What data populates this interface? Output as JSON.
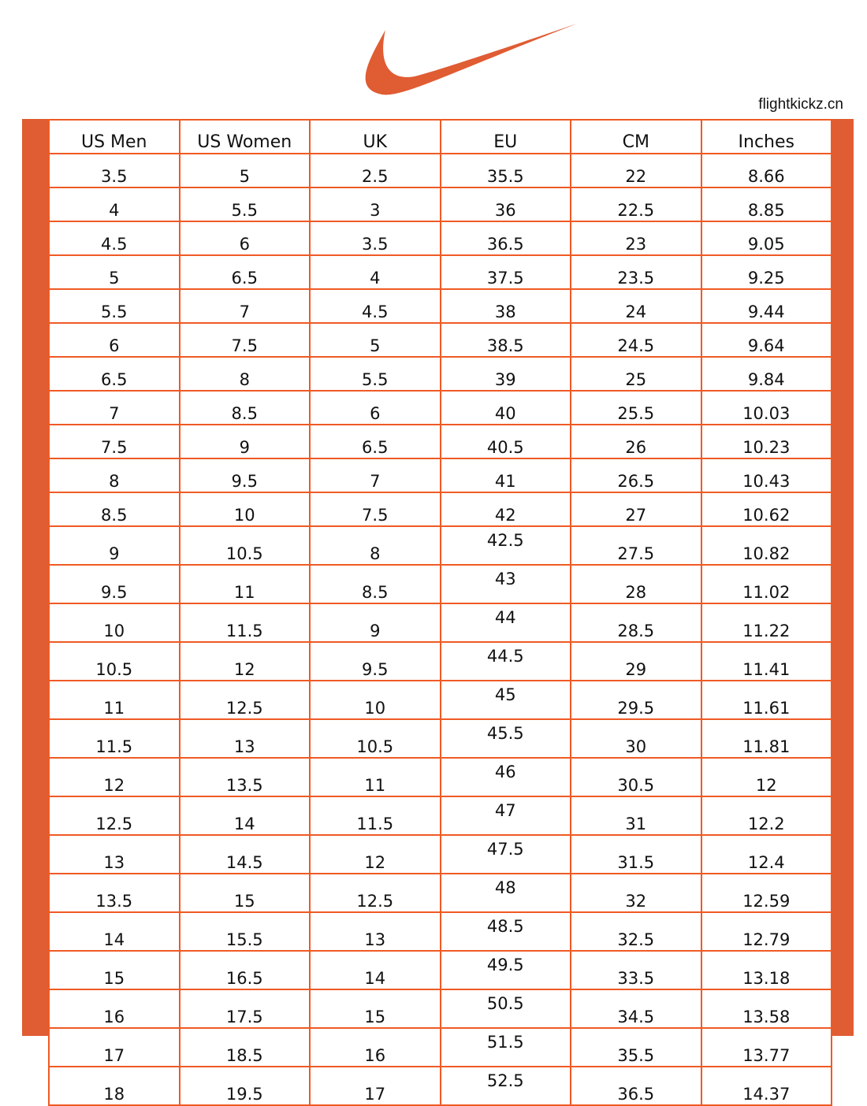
{
  "brand": {
    "logo": "Nike swoosh",
    "color": "#e05c33",
    "site": "flightkickz.cn"
  },
  "table": {
    "headers": [
      "US Men",
      "US Women",
      "UK",
      "EU",
      "CM",
      "Inches"
    ],
    "rows": [
      [
        "3.5",
        "5",
        "2.5",
        "35.5",
        "22",
        "8.66"
      ],
      [
        "4",
        "5.5",
        "3",
        "36",
        "22.5",
        "8.85"
      ],
      [
        "4.5",
        "6",
        "3.5",
        "36.5",
        "23",
        "9.05"
      ],
      [
        "5",
        "6.5",
        "4",
        "37.5",
        "23.5",
        "9.25"
      ],
      [
        "5.5",
        "7",
        "4.5",
        "38",
        "24",
        "9.44"
      ],
      [
        "6",
        "7.5",
        "5",
        "38.5",
        "24.5",
        "9.64"
      ],
      [
        "6.5",
        "8",
        "5.5",
        "39",
        "25",
        "9.84"
      ],
      [
        "7",
        "8.5",
        "6",
        "40",
        "25.5",
        "10.03"
      ],
      [
        "7.5",
        "9",
        "6.5",
        "40.5",
        "26",
        "10.23"
      ],
      [
        "8",
        "9.5",
        "7",
        "41",
        "26.5",
        "10.43"
      ],
      [
        "8.5",
        "10",
        "7.5",
        "42",
        "27",
        "10.62"
      ],
      [
        "9",
        "10.5",
        "8",
        "42.5",
        "27.5",
        "10.82"
      ],
      [
        "9.5",
        "11",
        "8.5",
        "43",
        "28",
        "11.02"
      ],
      [
        "10",
        "11.5",
        "9",
        "44",
        "28.5",
        "11.22"
      ],
      [
        "10.5",
        "12",
        "9.5",
        "44.5",
        "29",
        "11.41"
      ],
      [
        "11",
        "12.5",
        "10",
        "45",
        "29.5",
        "11.61"
      ],
      [
        "11.5",
        "13",
        "10.5",
        "45.5",
        "30",
        "11.81"
      ],
      [
        "12",
        "13.5",
        "11",
        "46",
        "30.5",
        "12"
      ],
      [
        "12.5",
        "14",
        "11.5",
        "47",
        "31",
        "12.2"
      ],
      [
        "13",
        "14.5",
        "12",
        "47.5",
        "31.5",
        "12.4"
      ],
      [
        "13.5",
        "15",
        "12.5",
        "48",
        "32",
        "12.59"
      ],
      [
        "14",
        "15.5",
        "13",
        "48.5",
        "32.5",
        "12.79"
      ],
      [
        "15",
        "16.5",
        "14",
        "49.5",
        "33.5",
        "13.18"
      ],
      [
        "16",
        "17.5",
        "15",
        "50.5",
        "34.5",
        "13.58"
      ],
      [
        "17",
        "18.5",
        "16",
        "51.5",
        "35.5",
        "13.77"
      ],
      [
        "18",
        "19.5",
        "17",
        "52.5",
        "36.5",
        "14.37"
      ]
    ]
  }
}
